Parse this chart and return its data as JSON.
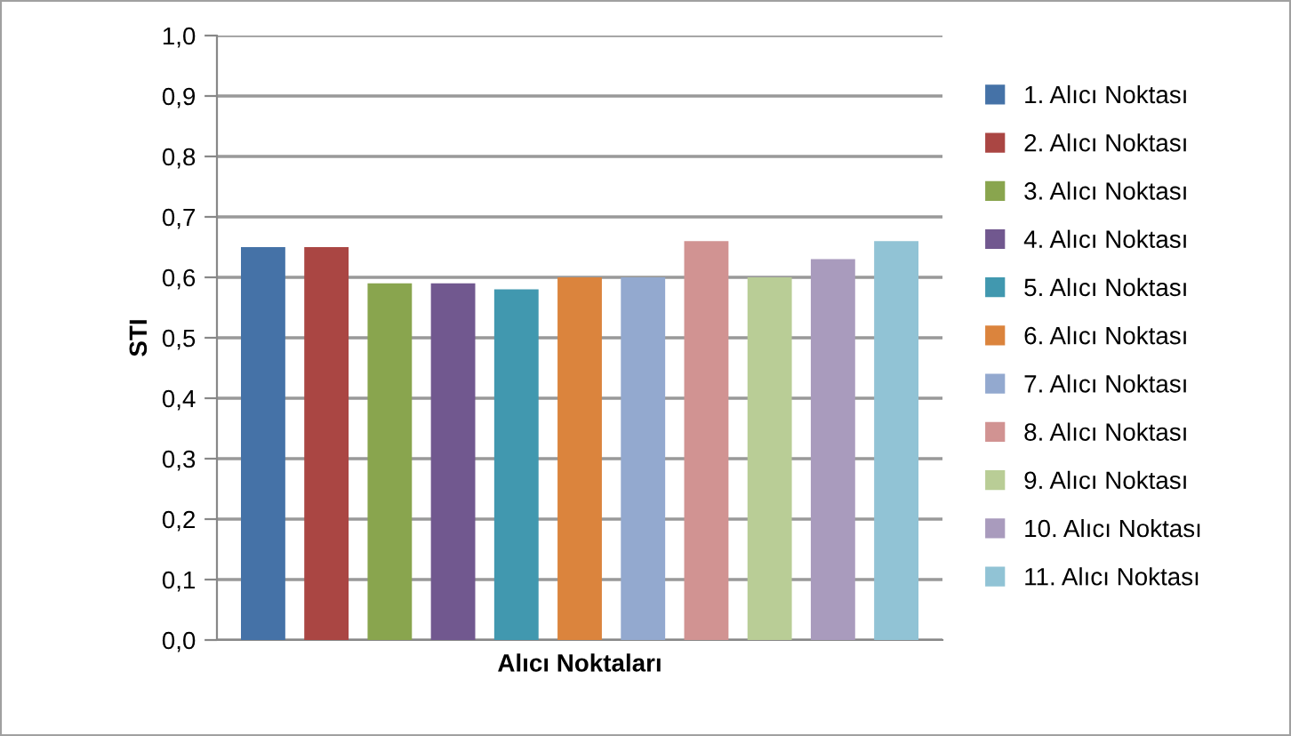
{
  "chart_data": {
    "type": "bar",
    "xlabel": "Alıcı Noktaları",
    "ylabel": "STI",
    "categories": [
      null
    ],
    "series": [
      {
        "name": "1. Alıcı Noktası",
        "color": "#4572a7",
        "values": [
          0.65
        ]
      },
      {
        "name": "2. Alıcı Noktası",
        "color": "#aa4643",
        "values": [
          0.65
        ]
      },
      {
        "name": "3. Alıcı Noktası",
        "color": "#89a54e",
        "values": [
          0.59
        ]
      },
      {
        "name": "4. Alıcı Noktası",
        "color": "#71588f",
        "values": [
          0.59
        ]
      },
      {
        "name": "5. Alıcı Noktası",
        "color": "#4198af",
        "values": [
          0.58
        ]
      },
      {
        "name": "6. Alıcı Noktası",
        "color": "#db843d",
        "values": [
          0.6
        ]
      },
      {
        "name": "7. Alıcı Noktası",
        "color": "#93a9cf",
        "values": [
          0.6
        ]
      },
      {
        "name": "8. Alıcı Noktası",
        "color": "#d19392",
        "values": [
          0.66
        ]
      },
      {
        "name": "9. Alıcı Noktası",
        "color": "#b9cd96",
        "values": [
          0.6
        ]
      },
      {
        "name": "10. Alıcı Noktası",
        "color": "#a99bbd",
        "values": [
          0.63
        ]
      },
      {
        "name": "11. Alıcı Noktası",
        "color": "#91c3d5",
        "values": [
          0.66
        ]
      }
    ],
    "ylim": [
      0,
      1.0
    ],
    "yticks": [
      {
        "value": 0,
        "label": "0,0"
      },
      {
        "value": 0.1,
        "label": "0,1"
      },
      {
        "value": 0.2,
        "label": "0,2"
      },
      {
        "value": 0.3,
        "label": "0,3"
      },
      {
        "value": 0.4,
        "label": "0,4"
      },
      {
        "value": 0.5,
        "label": "0,5"
      },
      {
        "value": 0.6,
        "label": "0,6"
      },
      {
        "value": 0.7,
        "label": "0,7"
      },
      {
        "value": 0.8,
        "label": "0,8"
      },
      {
        "value": 0.9,
        "label": "0,9"
      },
      {
        "value": 1.0,
        "label": "1,0"
      }
    ],
    "grid": "y",
    "legend": "right"
  }
}
